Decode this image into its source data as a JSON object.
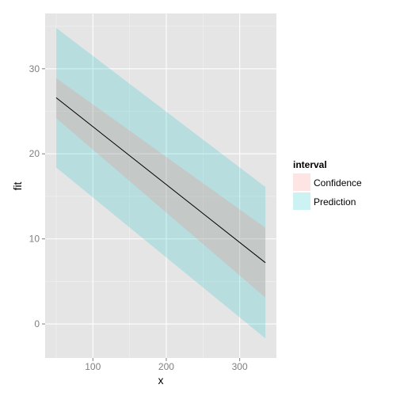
{
  "chart_data": {
    "type": "area",
    "xlabel": "x",
    "ylabel": "fit",
    "xlim": [
      35,
      350
    ],
    "ylim": [
      -4,
      36.5
    ],
    "x_ticks": [
      100,
      200,
      300
    ],
    "x_tick_labels": [
      "100",
      "200",
      "300"
    ],
    "y_ticks": [
      0,
      10,
      20,
      30
    ],
    "y_tick_labels": [
      "0",
      "10",
      "20",
      "30"
    ],
    "grid": true,
    "legend": {
      "title": "interval",
      "position": "right",
      "entries": [
        {
          "label": "Confidence",
          "color": "#F8766D"
        },
        {
          "label": "Prediction",
          "color": "#00BFC4"
        }
      ]
    },
    "fit_line": {
      "x": [
        50,
        335
      ],
      "y": [
        26.6,
        7.2
      ]
    },
    "series": [
      {
        "name": "Confidence",
        "color": "#F8766D",
        "x": [
          50,
          335
        ],
        "lower": [
          24.2,
          3.1
        ],
        "upper": [
          28.9,
          11.3
        ]
      },
      {
        "name": "Prediction",
        "color": "#00BFC4",
        "x": [
          50,
          335
        ],
        "lower": [
          18.4,
          -1.7
        ],
        "upper": [
          34.8,
          16.1
        ]
      }
    ],
    "colors": {
      "panel_background": "#E5E5E5",
      "grid_major": "#FFFFFF",
      "grid_minor": "#F2F2F2",
      "fit_line": "#000000"
    }
  }
}
